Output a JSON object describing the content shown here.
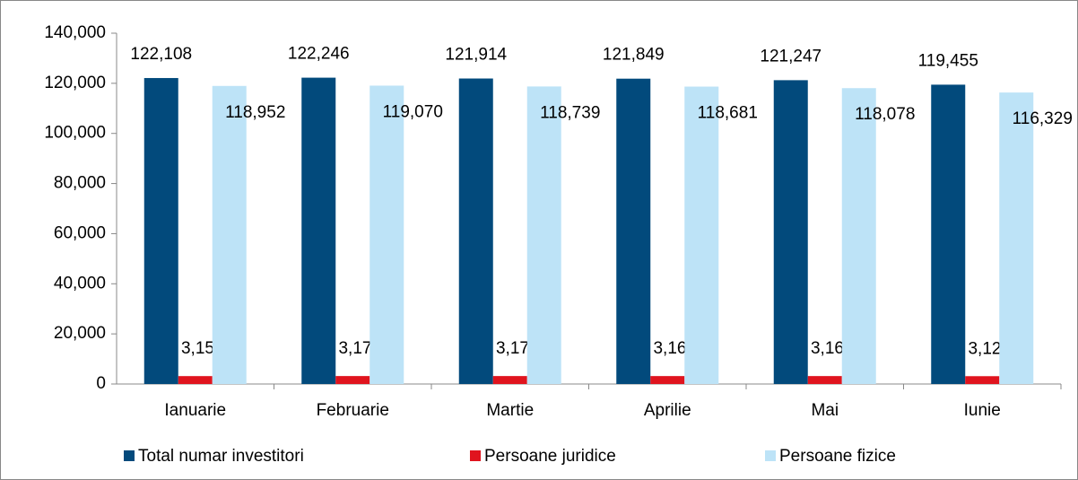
{
  "chart_data": {
    "type": "bar",
    "categories": [
      "Ianuarie",
      "Februarie",
      "Martie",
      "Aprilie",
      "Mai",
      "Iunie"
    ],
    "series": [
      {
        "name": "Total numar investitori",
        "color": "#024a7c",
        "values": [
          122108,
          122246,
          121914,
          121849,
          121247,
          119455
        ],
        "value_labels": [
          "122,108",
          "122,246",
          "121,914",
          "121,849",
          "121,247",
          "119,455"
        ]
      },
      {
        "name": "Persoane juridice",
        "color": "#e0141e",
        "values": [
          3156,
          3176,
          3175,
          3168,
          3169,
          3126
        ],
        "value_labels": [
          "3,156",
          "3,176",
          "3,175",
          "3,168",
          "3,169",
          "3,126"
        ]
      },
      {
        "name": "Persoane fizice",
        "color": "#bde3f7",
        "values": [
          118952,
          119070,
          118739,
          118681,
          118078,
          116329
        ],
        "value_labels": [
          "118,952",
          "119,070",
          "118,739",
          "118,681",
          "118,078",
          "116,329"
        ]
      }
    ],
    "ylim": [
      0,
      140000
    ],
    "yticks": [
      {
        "value": 0,
        "label": "0"
      },
      {
        "value": 20000,
        "label": "20,000"
      },
      {
        "value": 40000,
        "label": "40,000"
      },
      {
        "value": 60000,
        "label": "60,000"
      },
      {
        "value": 80000,
        "label": "80,000"
      },
      {
        "value": 100000,
        "label": "100,000"
      },
      {
        "value": 120000,
        "label": "120,000"
      },
      {
        "value": 140000,
        "label": "140,000"
      }
    ],
    "grid": false,
    "legend": "bottom"
  }
}
